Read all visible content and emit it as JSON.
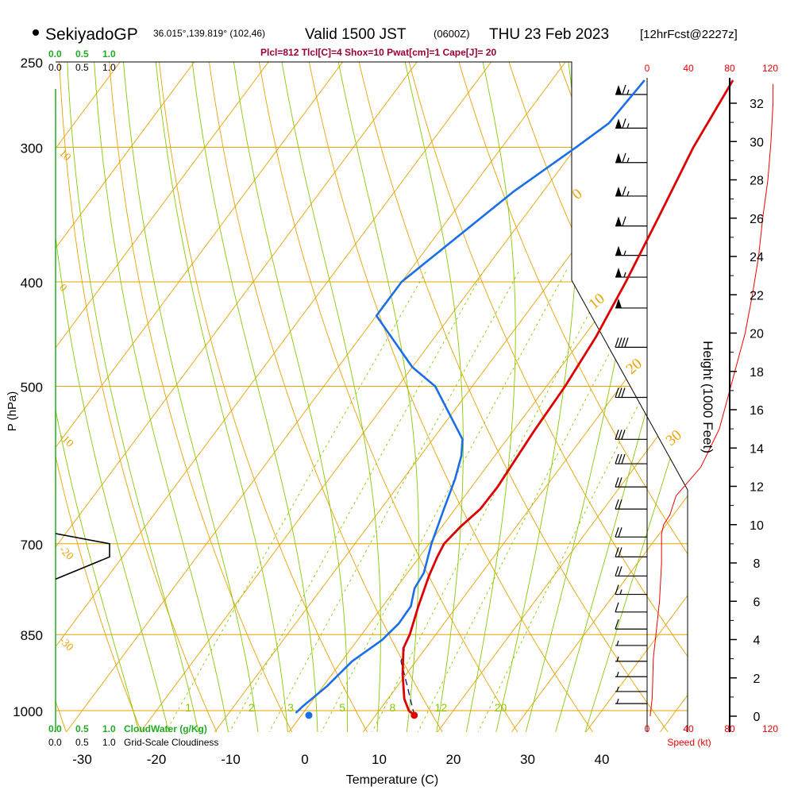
{
  "header": {
    "station": "SekiyadoGP",
    "coords": "36.015°,139.819° (102,46)",
    "valid": "Valid 1500 JST",
    "zulu": "(0600Z)",
    "date": "THU 23 Feb 2023",
    "forecast": "[12hrFcst@2227z]",
    "indices": "Plcl=812 Tlcl[C]=4 Shox=10 Pwat[cm]=1 Cape[J]= 20"
  },
  "colors": {
    "isotherm": "#e8a200",
    "dry_adiabat": "#e8a200",
    "moist_adiabat": "#88c800",
    "mixing_ratio": "#88c800",
    "temperature": "#dd0000",
    "dewpoint": "#1a6fe8",
    "parcel": "#202080",
    "cloud_water_axis": "#22aa22",
    "speed_axis": "#ee0000",
    "indices_text": "#990033"
  },
  "cloud_scales": {
    "cloud_water_ticks": [
      "0.0",
      "0.5",
      "1.0"
    ],
    "cloudiness_ticks": [
      "0.0",
      "0.5",
      "1.0"
    ],
    "cloud_water_label": "CloudWater (g/Kg)",
    "cloudiness_label": "Grid-Scale Cloudiness"
  },
  "speed_axis": {
    "ticks": [
      "0",
      "40",
      "80",
      "120"
    ],
    "label": "Speed (kt)"
  },
  "chart_data": {
    "type": "skew-t log-p",
    "xlabel": "Temperature (C)",
    "ylabel": "P (hPa)",
    "right_axis_label": "Height (1000 Feet)",
    "x_ticks": [
      -30,
      -20,
      -10,
      0,
      10,
      20,
      30,
      40
    ],
    "pressure_ticks": [
      250,
      300,
      400,
      500,
      700,
      850,
      1000
    ],
    "height_ticks_kft": [
      0,
      2,
      4,
      6,
      8,
      10,
      12,
      14,
      16,
      18,
      20,
      22,
      24,
      26,
      28,
      30,
      32
    ],
    "temperature_profile": [
      {
        "p": 1010,
        "t": 15.2
      },
      {
        "p": 1000,
        "t": 14.0
      },
      {
        "p": 975,
        "t": 12.2
      },
      {
        "p": 925,
        "t": 9.5
      },
      {
        "p": 875,
        "t": 7.0
      },
      {
        "p": 850,
        "t": 6.5
      },
      {
        "p": 800,
        "t": 4.8
      },
      {
        "p": 750,
        "t": 3.2
      },
      {
        "p": 720,
        "t": 2.4
      },
      {
        "p": 700,
        "t": 2.0
      },
      {
        "p": 675,
        "t": 2.5
      },
      {
        "p": 650,
        "t": 3.4
      },
      {
        "p": 620,
        "t": 3.5
      },
      {
        "p": 550,
        "t": 2.8
      },
      {
        "p": 500,
        "t": 2.5
      },
      {
        "p": 450,
        "t": 1.7
      },
      {
        "p": 400,
        "t": 0.2
      },
      {
        "p": 350,
        "t": -1.8
      },
      {
        "p": 300,
        "t": -4.2
      },
      {
        "p": 260,
        "t": -5.6
      }
    ],
    "dewpoint_profile": [
      {
        "p": 1005,
        "t": -1.0
      },
      {
        "p": 990,
        "t": -0.7
      },
      {
        "p": 950,
        "t": 0.5
      },
      {
        "p": 900,
        "t": 1.4
      },
      {
        "p": 860,
        "t": 3.3
      },
      {
        "p": 830,
        "t": 3.9
      },
      {
        "p": 800,
        "t": 3.8
      },
      {
        "p": 770,
        "t": 2.5
      },
      {
        "p": 745,
        "t": 2.2
      },
      {
        "p": 700,
        "t": 0.3
      },
      {
        "p": 650,
        "t": -1.5
      },
      {
        "p": 610,
        "t": -3.0
      },
      {
        "p": 580,
        "t": -4.5
      },
      {
        "p": 560,
        "t": -6.0
      },
      {
        "p": 500,
        "t": -15.0
      },
      {
        "p": 480,
        "t": -20.0
      },
      {
        "p": 430,
        "t": -30.0
      },
      {
        "p": 400,
        "t": -30.0
      },
      {
        "p": 330,
        "t": -24.0
      },
      {
        "p": 300,
        "t": -20.0
      },
      {
        "p": 285,
        "t": -18.0
      },
      {
        "p": 260,
        "t": -17.5
      }
    ],
    "surface_points": {
      "temperature": 15.2,
      "dewpoint": 1.0,
      "pressure": 1010
    },
    "parcel_path": [
      {
        "p": 1010,
        "t": 15.2
      },
      {
        "p": 950,
        "t": 11.4
      },
      {
        "p": 900,
        "t": 8.0
      },
      {
        "p": 870,
        "t": 7.0
      }
    ],
    "mixing_ratio_labels": [
      "1",
      "2",
      "3",
      "5",
      "8",
      "12",
      "20"
    ],
    "isotherm_labels": [
      "10",
      "0",
      "-10",
      "-20",
      "-30"
    ],
    "right_temp_labels": [
      "0",
      "10",
      "20",
      "30"
    ],
    "cloudiness_profile": [
      {
        "p": 685,
        "v": 0.0
      },
      {
        "p": 700,
        "v": 1.0
      },
      {
        "p": 720,
        "v": 1.0
      },
      {
        "p": 755,
        "v": 0.0
      }
    ],
    "wind_speed_profile_kft": [
      {
        "h": 0.0,
        "kt": 3
      },
      {
        "h": 1.0,
        "kt": 5
      },
      {
        "h": 3.0,
        "kt": 6
      },
      {
        "h": 4.5,
        "kt": 9
      },
      {
        "h": 6.0,
        "kt": 12
      },
      {
        "h": 8.0,
        "kt": 14
      },
      {
        "h": 9.5,
        "kt": 14
      },
      {
        "h": 10.0,
        "kt": 16
      },
      {
        "h": 10.5,
        "kt": 22
      },
      {
        "h": 11.5,
        "kt": 28
      },
      {
        "h": 13.0,
        "kt": 52
      },
      {
        "h": 15.0,
        "kt": 70
      },
      {
        "h": 18.0,
        "kt": 85
      },
      {
        "h": 20.0,
        "kt": 95
      },
      {
        "h": 22.0,
        "kt": 102
      },
      {
        "h": 24.0,
        "kt": 108
      },
      {
        "h": 26.0,
        "kt": 112
      },
      {
        "h": 28.0,
        "kt": 117
      },
      {
        "h": 30.0,
        "kt": 120
      },
      {
        "h": 32.0,
        "kt": 122
      },
      {
        "h": 33.0,
        "kt": 122
      }
    ],
    "wind_barbs": [
      {
        "p": 268,
        "kt": 65
      },
      {
        "p": 288,
        "kt": 65
      },
      {
        "p": 310,
        "kt": 65
      },
      {
        "p": 333,
        "kt": 65
      },
      {
        "p": 355,
        "kt": 60
      },
      {
        "p": 378,
        "kt": 55
      },
      {
        "p": 396,
        "kt": 55
      },
      {
        "p": 423,
        "kt": 50
      },
      {
        "p": 460,
        "kt": 40
      },
      {
        "p": 512,
        "kt": 30
      },
      {
        "p": 560,
        "kt": 30
      },
      {
        "p": 590,
        "kt": 30
      },
      {
        "p": 620,
        "kt": 20
      },
      {
        "p": 650,
        "kt": 20
      },
      {
        "p": 690,
        "kt": 20
      },
      {
        "p": 720,
        "kt": 20
      },
      {
        "p": 750,
        "kt": 20
      },
      {
        "p": 780,
        "kt": 15
      },
      {
        "p": 810,
        "kt": 10
      },
      {
        "p": 840,
        "kt": 10
      },
      {
        "p": 870,
        "kt": 5
      },
      {
        "p": 900,
        "kt": 5
      },
      {
        "p": 930,
        "kt": 5
      },
      {
        "p": 960,
        "kt": 5
      },
      {
        "p": 985,
        "kt": 5
      }
    ]
  }
}
